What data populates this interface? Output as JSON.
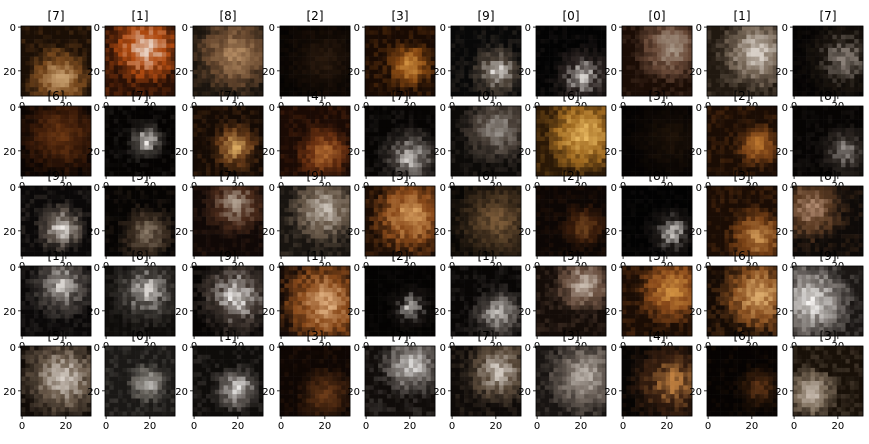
{
  "chart_data": {
    "type": "image-grid",
    "rows": 5,
    "cols": 10,
    "image_size": 32,
    "tick_values": [
      0,
      20
    ],
    "titles": [
      [
        "[7]",
        "[1]",
        "[8]",
        "[2]",
        "[3]",
        "[9]",
        "[0]",
        "[0]",
        "[1]",
        "[7]"
      ],
      [
        "[6]",
        "[7]",
        "[7]",
        "[4]",
        "[7]",
        "[0]",
        "[6]",
        "[3]",
        "[2]",
        "[8]"
      ],
      [
        "[9]",
        "[3]",
        "[7]",
        "[9]",
        "[3]",
        "[6]",
        "[2]",
        "[8]",
        "[3]",
        "[8]"
      ],
      [
        "[1]",
        "[8]",
        "[9]",
        "[1]",
        "[2]",
        "[1]",
        "[5]",
        "[3]",
        "[6]",
        "[9]"
      ],
      [
        "[5]",
        "[0]",
        "[1]",
        "[3]",
        "[7]",
        "[7]",
        "[3]",
        "[4]",
        "[6]",
        "[3]"
      ]
    ],
    "panel_palettes": [
      [
        [
          "#1a0e05",
          "#7a4a1e",
          "#c8a070"
        ],
        [
          "#2a1005",
          "#b04a10",
          "#e8d0c0"
        ],
        [
          "#1a140e",
          "#6a4a30",
          "#b08860"
        ],
        [
          "#050302",
          "#140b05",
          "#2a1a0e"
        ],
        [
          "#180a03",
          "#8a4a12",
          "#d09040"
        ],
        [
          "#080808",
          "#4a4036",
          "#e0dcd8"
        ],
        [
          "#030303",
          "#2a2220",
          "#d8d4d0"
        ],
        [
          "#1a0c05",
          "#6a4a38",
          "#a89888"
        ],
        [
          "#201810",
          "#7a6a5a",
          "#d8d0c8"
        ],
        [
          "#050303",
          "#1a140e",
          "#8a8078"
        ]
      ],
      [
        [
          "#0a0402",
          "#3a1a08",
          "#6a3612"
        ],
        [
          "#050302",
          "#3a3632",
          "#eeeae6"
        ],
        [
          "#140a04",
          "#6a3c18",
          "#d8a860"
        ],
        [
          "#1a0a04",
          "#6a3010",
          "#b06a30"
        ],
        [
          "#060403",
          "#3a3430",
          "#d0ccc8"
        ],
        [
          "#0c0a08",
          "#4a4038",
          "#9a948e"
        ],
        [
          "#2a1806",
          "#a06a20",
          "#e8b860"
        ],
        [
          "#040202",
          "#0e0804",
          "#1e1208"
        ],
        [
          "#1a0c04",
          "#7a4216",
          "#c07a30"
        ],
        [
          "#060403",
          "#2a2420",
          "#9a9490"
        ]
      ],
      [
        [
          "#0a0808",
          "#5a5048",
          "#eeeae6"
        ],
        [
          "#060403",
          "#3a2c20",
          "#8a7a68"
        ],
        [
          "#100806",
          "#4a2a1a",
          "#b0a090"
        ],
        [
          "#181410",
          "#6a5a4a",
          "#c8c0b6"
        ],
        [
          "#1a0c04",
          "#8a4a1a",
          "#d8a060"
        ],
        [
          "#080604",
          "#3a2a1a",
          "#7a5a38"
        ],
        [
          "#0c0604",
          "#3a1c0a",
          "#7a4a20"
        ],
        [
          "#020202",
          "#1a1614",
          "#c8c4c0"
        ],
        [
          "#1a0c04",
          "#7a4216",
          "#c89050"
        ],
        [
          "#0e0a08",
          "#5a3a22",
          "#b08a70"
        ]
      ],
      [
        [
          "#0a0808",
          "#4a4440",
          "#d8d4d0"
        ],
        [
          "#0e0c0a",
          "#3a3632",
          "#d8d4d0"
        ],
        [
          "#060403",
          "#403630",
          "#f0eeec"
        ],
        [
          "#140a06",
          "#8a4a1a",
          "#e0b080"
        ],
        [
          "#040302",
          "#161210",
          "#d0ccc8"
        ],
        [
          "#080605",
          "#4a4440",
          "#c8c4c0"
        ],
        [
          "#140c08",
          "#6a5040",
          "#d0c4b8"
        ],
        [
          "#1a0c04",
          "#8a4a1a",
          "#d09040"
        ],
        [
          "#140a04",
          "#8a5020",
          "#e0b070"
        ],
        [
          "#1a1614",
          "#7a7470",
          "#f4f2f0"
        ]
      ],
      [
        [
          "#100a06",
          "#6a5a4a",
          "#d8d0c8"
        ],
        [
          "#1a1816",
          "#6a6660",
          "#c8c6c2"
        ],
        [
          "#0e0c0a",
          "#5a5450",
          "#e8e6e4"
        ],
        [
          "#0e0603",
          "#3a1e0c",
          "#6a3a18"
        ],
        [
          "#100c0a",
          "#6a6460",
          "#d8d6d4"
        ],
        [
          "#0e0a08",
          "#5a4a3a",
          "#d0c8c0"
        ],
        [
          "#181412",
          "#6a6058",
          "#b8b0a8"
        ],
        [
          "#060403",
          "#3a2010",
          "#c08040"
        ],
        [
          "#060302",
          "#2a1608",
          "#6a3a18"
        ],
        [
          "#181008",
          "#7a6a58",
          "#c8bcb0"
        ]
      ]
    ]
  }
}
